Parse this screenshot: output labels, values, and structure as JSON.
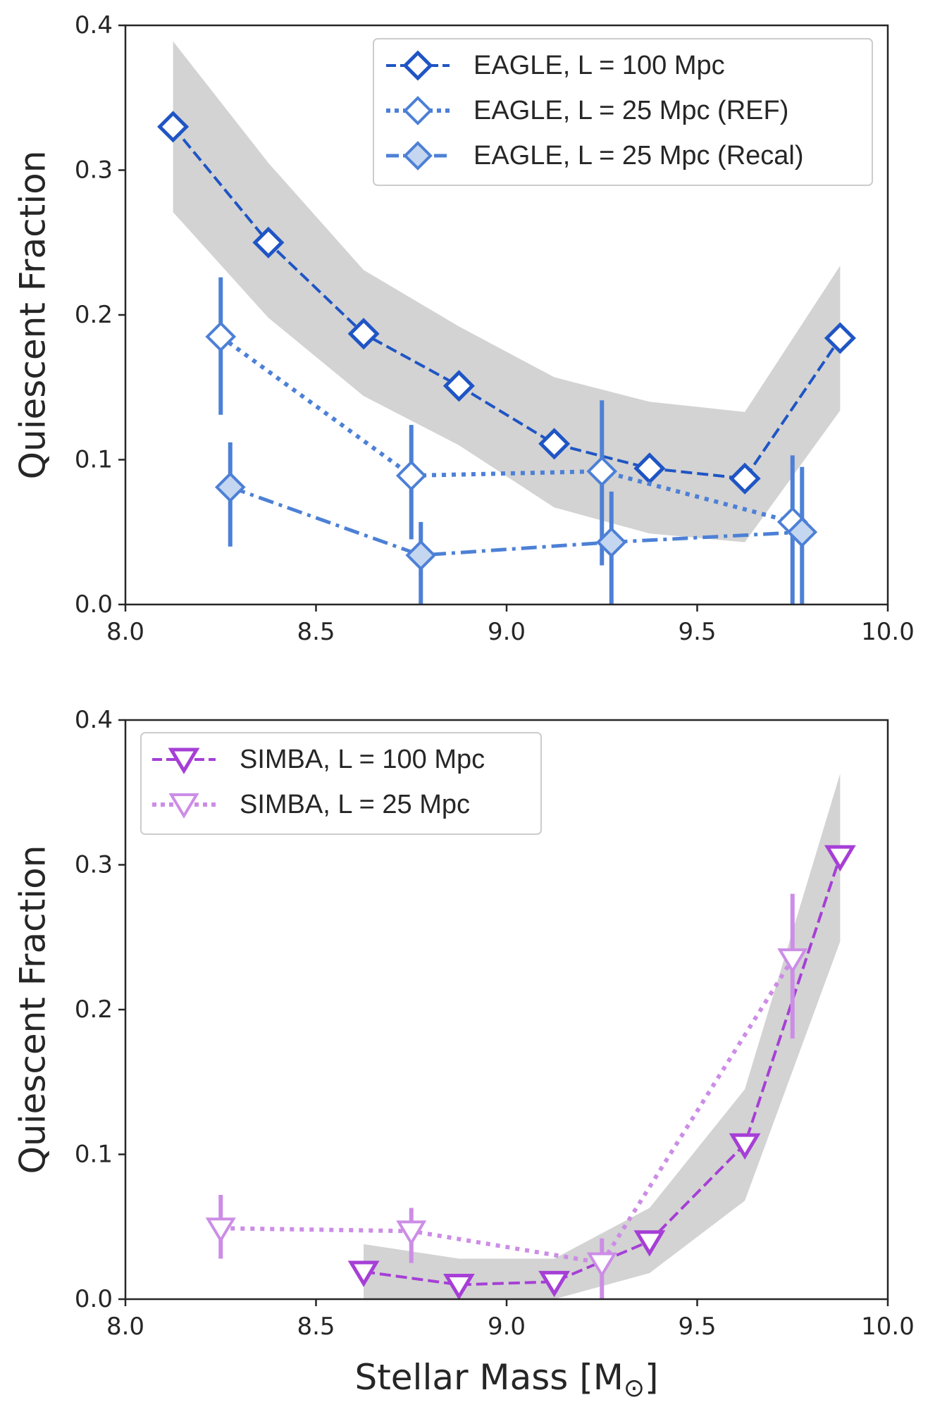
{
  "chart_data": [
    {
      "type": "line",
      "panel": "top",
      "title": "",
      "xlabel": "",
      "ylabel": "Quiescent Fraction",
      "xlim": [
        8.0,
        10.0
      ],
      "ylim": [
        0.0,
        0.4
      ],
      "xticks": [
        "8.0",
        "8.5",
        "9.0",
        "9.5",
        "10.0"
      ],
      "yticks": [
        "0.0",
        "0.1",
        "0.2",
        "0.3",
        "0.4"
      ],
      "grid": false,
      "legend_position": "top-right",
      "band": {
        "x": [
          8.125,
          8.375,
          8.625,
          8.875,
          9.125,
          9.375,
          9.625,
          9.875
        ],
        "lower": [
          0.271,
          0.198,
          0.144,
          0.11,
          0.067,
          0.049,
          0.043,
          0.134
        ],
        "upper": [
          0.389,
          0.305,
          0.231,
          0.192,
          0.157,
          0.14,
          0.133,
          0.234
        ]
      },
      "series": [
        {
          "name": "EAGLE, L = 100 Mpc",
          "style": "dashed",
          "marker": "diamond",
          "fill": "open",
          "color": "#1f55c4",
          "fill_color": "#ffffff",
          "x": [
            8.125,
            8.375,
            8.625,
            8.875,
            9.125,
            9.375,
            9.625,
            9.875
          ],
          "y": [
            0.33,
            0.25,
            0.187,
            0.151,
            0.111,
            0.094,
            0.087,
            0.184
          ],
          "yerr_low": [],
          "yerr_high": []
        },
        {
          "name": "EAGLE, L = 25 Mpc (REF)",
          "style": "dotted",
          "marker": "diamond",
          "fill": "open",
          "color": "#4d80d6",
          "fill_color": "#ffffff",
          "x": [
            8.25,
            8.75,
            9.25,
            9.75
          ],
          "y": [
            0.185,
            0.089,
            0.092,
            0.057
          ],
          "yerr_low": [
            0.131,
            0.045,
            0.027,
            0.0
          ],
          "yerr_high": [
            0.226,
            0.124,
            0.141,
            0.103
          ]
        },
        {
          "name": "EAGLE, L = 25 Mpc (Recal)",
          "style": "dashdot",
          "marker": "diamond",
          "fill": "light",
          "color": "#4d80d6",
          "fill_color": "#c4d6f0",
          "x": [
            8.275,
            8.775,
            9.275,
            9.775
          ],
          "y": [
            0.081,
            0.034,
            0.043,
            0.05
          ],
          "yerr_low": [
            0.04,
            0.0,
            0.0,
            0.0
          ],
          "yerr_high": [
            0.112,
            0.057,
            0.078,
            0.095
          ]
        }
      ]
    },
    {
      "type": "line",
      "panel": "bottom",
      "title": "",
      "xlabel": "Stellar Mass [M",
      "xlabel_symbol": "⊙",
      "xlabel_close": "]",
      "ylabel": "Quiescent Fraction",
      "xlim": [
        8.0,
        10.0
      ],
      "ylim": [
        0.0,
        0.4
      ],
      "xticks": [
        "8.0",
        "8.5",
        "9.0",
        "9.5",
        "10.0"
      ],
      "yticks": [
        "0.0",
        "0.1",
        "0.2",
        "0.3",
        "0.4"
      ],
      "grid": false,
      "legend_position": "top-left",
      "band": {
        "x": [
          8.625,
          8.875,
          9.125,
          9.375,
          9.625,
          9.875
        ],
        "lower": [
          0.0,
          0.0,
          0.0,
          0.018,
          0.068,
          0.247
        ],
        "upper": [
          0.038,
          0.028,
          0.028,
          0.063,
          0.145,
          0.363
        ]
      },
      "series": [
        {
          "name": "SIMBA, L = 100 Mpc",
          "style": "dashed",
          "marker": "triangle-down",
          "fill": "open",
          "color": "#a63fd6",
          "fill_color": "#ffffff",
          "x": [
            8.625,
            8.875,
            9.125,
            9.375,
            9.625,
            9.875
          ],
          "y": [
            0.019,
            0.01,
            0.012,
            0.04,
            0.107,
            0.306
          ],
          "yerr_low": [],
          "yerr_high": []
        },
        {
          "name": "SIMBA, L = 25 Mpc",
          "style": "dotted",
          "marker": "triangle-down",
          "fill": "open",
          "color": "#cc8de6",
          "fill_color": "#ffffff",
          "x": [
            8.25,
            8.75,
            9.25,
            9.75
          ],
          "y": [
            0.049,
            0.047,
            0.025,
            0.235
          ],
          "yerr_low": [
            0.028,
            0.025,
            0.0,
            0.18
          ],
          "yerr_high": [
            0.072,
            0.063,
            0.042,
            0.28
          ]
        }
      ]
    }
  ]
}
